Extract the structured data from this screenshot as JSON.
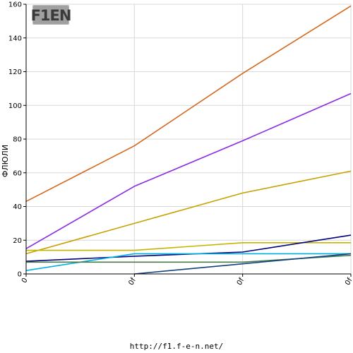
{
  "logo": {
    "text": "F1EN"
  },
  "footer": {
    "url": "http://f1.f-e-n.net/"
  },
  "colors": {
    "background": "#ffffff",
    "grid": "#d8d8d8",
    "axis": "#000000"
  },
  "chart_data": {
    "type": "line",
    "title": "",
    "ylabel": "ФЛЮЛИ",
    "xlabel": "",
    "categories": [
      "0",
      "0f",
      "0f",
      "0f"
    ],
    "ylim": [
      0,
      160
    ],
    "yticks": [
      0,
      20,
      40,
      60,
      80,
      100,
      120,
      140,
      160
    ],
    "grid": true,
    "series": [
      {
        "color": "#d2691e",
        "values": [
          43,
          76,
          119,
          159
        ]
      },
      {
        "color": "#8a2be2",
        "values": [
          15,
          52,
          79,
          107
        ]
      },
      {
        "color": "#c8a000",
        "values": [
          12,
          30,
          48,
          61
        ]
      },
      {
        "color": "#c8b400",
        "values": [
          14,
          14,
          18.5,
          18.5
        ]
      },
      {
        "color": "#000080",
        "values": [
          7.5,
          10.5,
          13,
          23
        ]
      },
      {
        "color": "#00b0e0",
        "values": [
          2,
          12,
          12,
          12
        ]
      },
      {
        "color": "#4b7b4b",
        "values": [
          7,
          7,
          7,
          11
        ]
      },
      {
        "color": "#104080",
        "values": [
          null,
          0,
          6,
          12
        ]
      }
    ]
  }
}
